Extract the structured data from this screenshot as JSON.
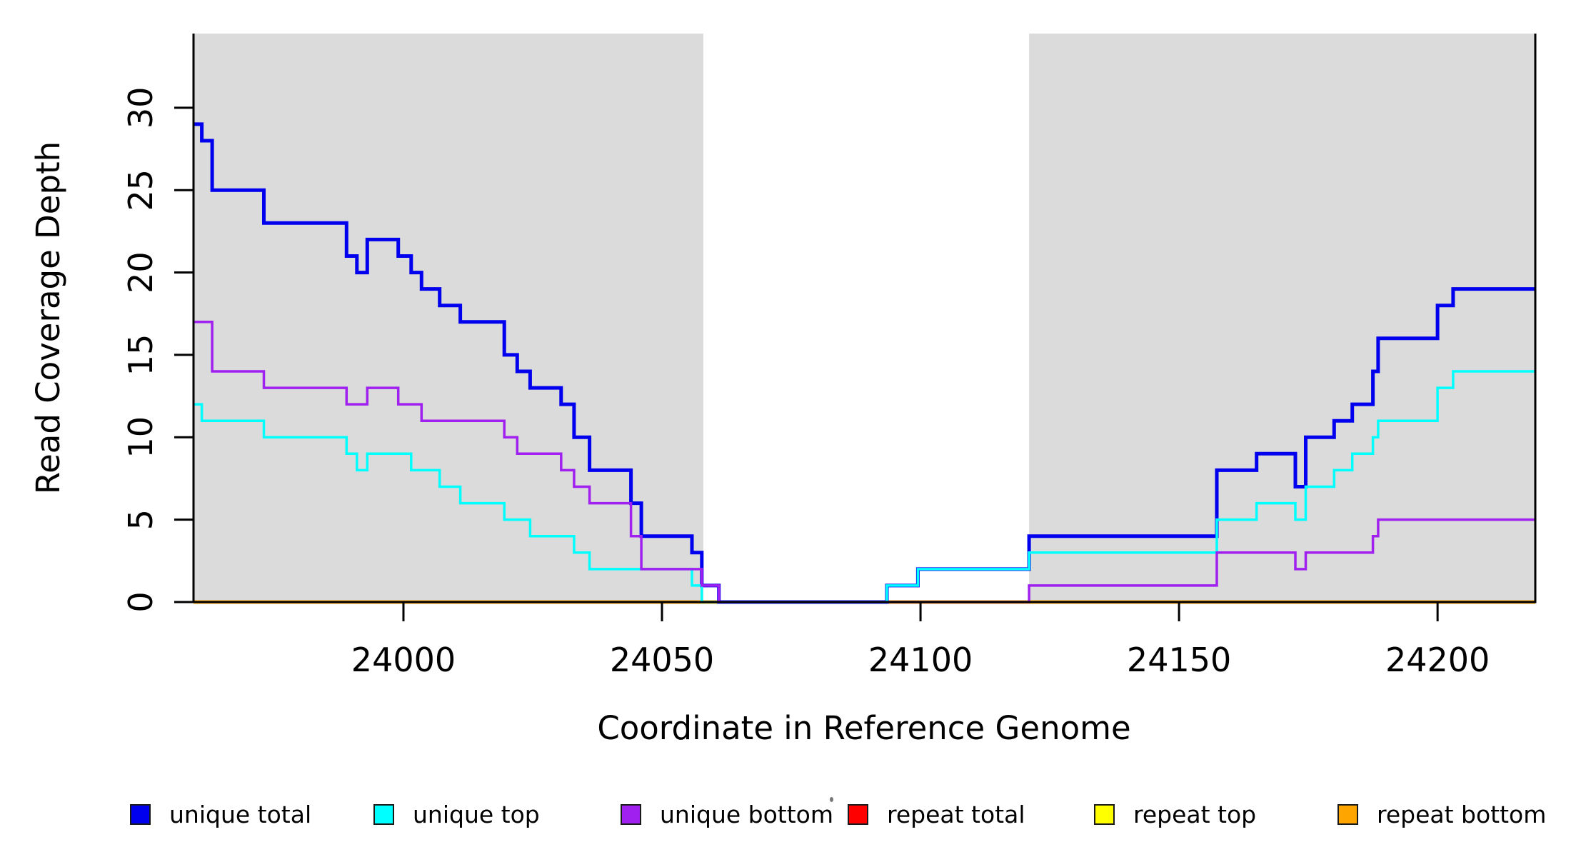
{
  "chart_data": {
    "type": "line",
    "subtype": "step-after-coverage-plot",
    "title": "",
    "xlabel": "Coordinate in Reference Genome",
    "ylabel": "Read Coverage Depth",
    "xlim": [
      23959.4,
      24218.9
    ],
    "ylim": [
      0,
      34.5
    ],
    "grid": false,
    "x_ticks": [
      24000,
      24050,
      24100,
      24150,
      24200
    ],
    "y_ticks": [
      0,
      5,
      10,
      15,
      20,
      25,
      30
    ],
    "legend_position": "bottom",
    "shaded_regions": [
      {
        "name": "left-repeat-region",
        "x0": 23959.4,
        "x1": 24058.0,
        "color": "#dbdbdb"
      },
      {
        "name": "right-repeat-region",
        "x0": 24121.0,
        "x1": 24218.9,
        "color": "#dbdbdb"
      }
    ],
    "legend": [
      {
        "label": "unique total",
        "color": "#0000ee"
      },
      {
        "label": "unique top",
        "color": "#00ffff"
      },
      {
        "label": "unique bottom",
        "color": "#a020f0"
      },
      {
        "label": "repeat total",
        "color": "#ff0000"
      },
      {
        "label": "repeat top",
        "color": "#ffff00"
      },
      {
        "label": "repeat bottom",
        "color": "#ffa500"
      }
    ],
    "series": [
      {
        "name": "unique total",
        "color": "#0000ee",
        "width": 5,
        "points": [
          [
            23959.4,
            29
          ],
          [
            23961,
            28
          ],
          [
            23963,
            25
          ],
          [
            23973,
            23
          ],
          [
            23989,
            21
          ],
          [
            23991,
            20
          ],
          [
            23993,
            22
          ],
          [
            23999,
            21
          ],
          [
            24001.5,
            20
          ],
          [
            24003.5,
            19
          ],
          [
            24007,
            18
          ],
          [
            24011,
            17
          ],
          [
            24019.5,
            15
          ],
          [
            24022,
            14
          ],
          [
            24024.5,
            13
          ],
          [
            24030.5,
            12
          ],
          [
            24033,
            10
          ],
          [
            24036,
            8
          ],
          [
            24044,
            6
          ],
          [
            24046,
            4
          ],
          [
            24055.8,
            3
          ],
          [
            24057.7,
            1
          ],
          [
            24061,
            0
          ],
          [
            24093.5,
            1
          ],
          [
            24099.5,
            2
          ],
          [
            24121,
            4
          ],
          [
            24157.3,
            8
          ],
          [
            24165,
            9
          ],
          [
            24172.5,
            7
          ],
          [
            24174.5,
            10
          ],
          [
            24180,
            11
          ],
          [
            24183.5,
            12
          ],
          [
            24187.5,
            14
          ],
          [
            24188.5,
            16
          ],
          [
            24200,
            18
          ],
          [
            24203,
            19
          ],
          [
            24218.9,
            19
          ]
        ]
      },
      {
        "name": "unique top",
        "color": "#00ffff",
        "width": 3.5,
        "points": [
          [
            23959.4,
            12
          ],
          [
            23961,
            11
          ],
          [
            23973,
            10
          ],
          [
            23989,
            9
          ],
          [
            23991,
            8
          ],
          [
            23993,
            9
          ],
          [
            24001.5,
            8
          ],
          [
            24007,
            7
          ],
          [
            24011,
            6
          ],
          [
            24019.5,
            5
          ],
          [
            24024.5,
            4
          ],
          [
            24033,
            3
          ],
          [
            24036,
            2
          ],
          [
            24055.8,
            1
          ],
          [
            24057.7,
            0
          ],
          [
            24093.5,
            1
          ],
          [
            24099.5,
            2
          ],
          [
            24121,
            3
          ],
          [
            24157.3,
            5
          ],
          [
            24165,
            6
          ],
          [
            24172.5,
            5
          ],
          [
            24174.5,
            7
          ],
          [
            24180,
            8
          ],
          [
            24183.5,
            9
          ],
          [
            24187.5,
            10
          ],
          [
            24188.5,
            11
          ],
          [
            24200,
            13
          ],
          [
            24203,
            14
          ],
          [
            24218.9,
            14
          ]
        ]
      },
      {
        "name": "unique bottom",
        "color": "#a020f0",
        "width": 3.5,
        "points": [
          [
            23959.4,
            17
          ],
          [
            23963,
            14
          ],
          [
            23973,
            13
          ],
          [
            23989,
            12
          ],
          [
            23993,
            13
          ],
          [
            23999,
            12
          ],
          [
            24003.5,
            11
          ],
          [
            24019.5,
            10
          ],
          [
            24022,
            9
          ],
          [
            24030.5,
            8
          ],
          [
            24033,
            7
          ],
          [
            24036,
            6
          ],
          [
            24044,
            4
          ],
          [
            24046,
            2
          ],
          [
            24057.7,
            1
          ],
          [
            24061,
            0
          ],
          [
            24121,
            1
          ],
          [
            24157.3,
            3
          ],
          [
            24172.5,
            2
          ],
          [
            24174.5,
            3
          ],
          [
            24187.5,
            4
          ],
          [
            24188.5,
            5
          ],
          [
            24218.9,
            5
          ]
        ]
      },
      {
        "name": "repeat total",
        "color": "#ff0000",
        "width": 3.5,
        "points": [
          [
            23959.4,
            0
          ],
          [
            24218.9,
            0
          ]
        ]
      },
      {
        "name": "repeat top",
        "color": "#ffff00",
        "width": 3.5,
        "points": [
          [
            23959.4,
            0
          ],
          [
            24218.9,
            0
          ]
        ]
      },
      {
        "name": "repeat bottom",
        "color": "#ffa500",
        "width": 5,
        "points": [
          [
            23959.4,
            0
          ],
          [
            24218.9,
            0
          ]
        ]
      }
    ]
  }
}
